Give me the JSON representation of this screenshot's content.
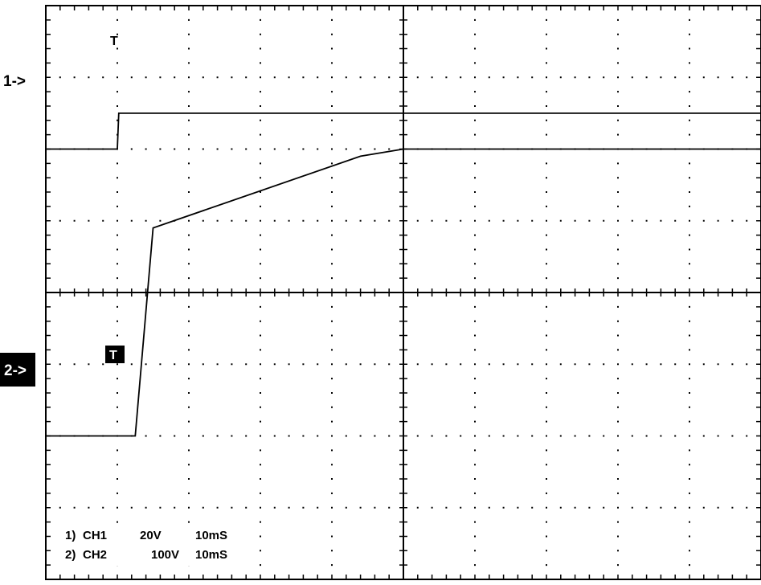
{
  "chart_data": {
    "type": "line",
    "grid": true,
    "divisions": {
      "x": 10,
      "y": 8
    },
    "x_unit_per_div": "10mS",
    "series": [
      {
        "name": "CH1",
        "marker": "1->",
        "volts_per_div": "20V",
        "time_per_div": "10mS",
        "trigger_label": "T",
        "points_div": [
          [
            0,
            6.0
          ],
          [
            1.0,
            6.0
          ],
          [
            1.02,
            6.5
          ],
          [
            10,
            6.5
          ]
        ]
      },
      {
        "name": "CH2",
        "marker": "2->",
        "volts_per_div": "100V",
        "time_per_div": "10mS",
        "trigger_label": "T",
        "points_div": [
          [
            0,
            2.0
          ],
          [
            1.25,
            2.0
          ],
          [
            1.5,
            4.9
          ],
          [
            4.4,
            5.9
          ],
          [
            5.0,
            6.0
          ],
          [
            10,
            6.0
          ]
        ]
      }
    ],
    "info_lines": [
      {
        "idx": "1)",
        "ch": "CH1",
        "volts": "20V",
        "time": "10mS"
      },
      {
        "idx": "2)",
        "ch": "CH2",
        "volts": "100V",
        "time": "10mS"
      }
    ]
  },
  "colors": {
    "background": "#ffffff",
    "trace": "#000000",
    "grid": "#000000"
  }
}
